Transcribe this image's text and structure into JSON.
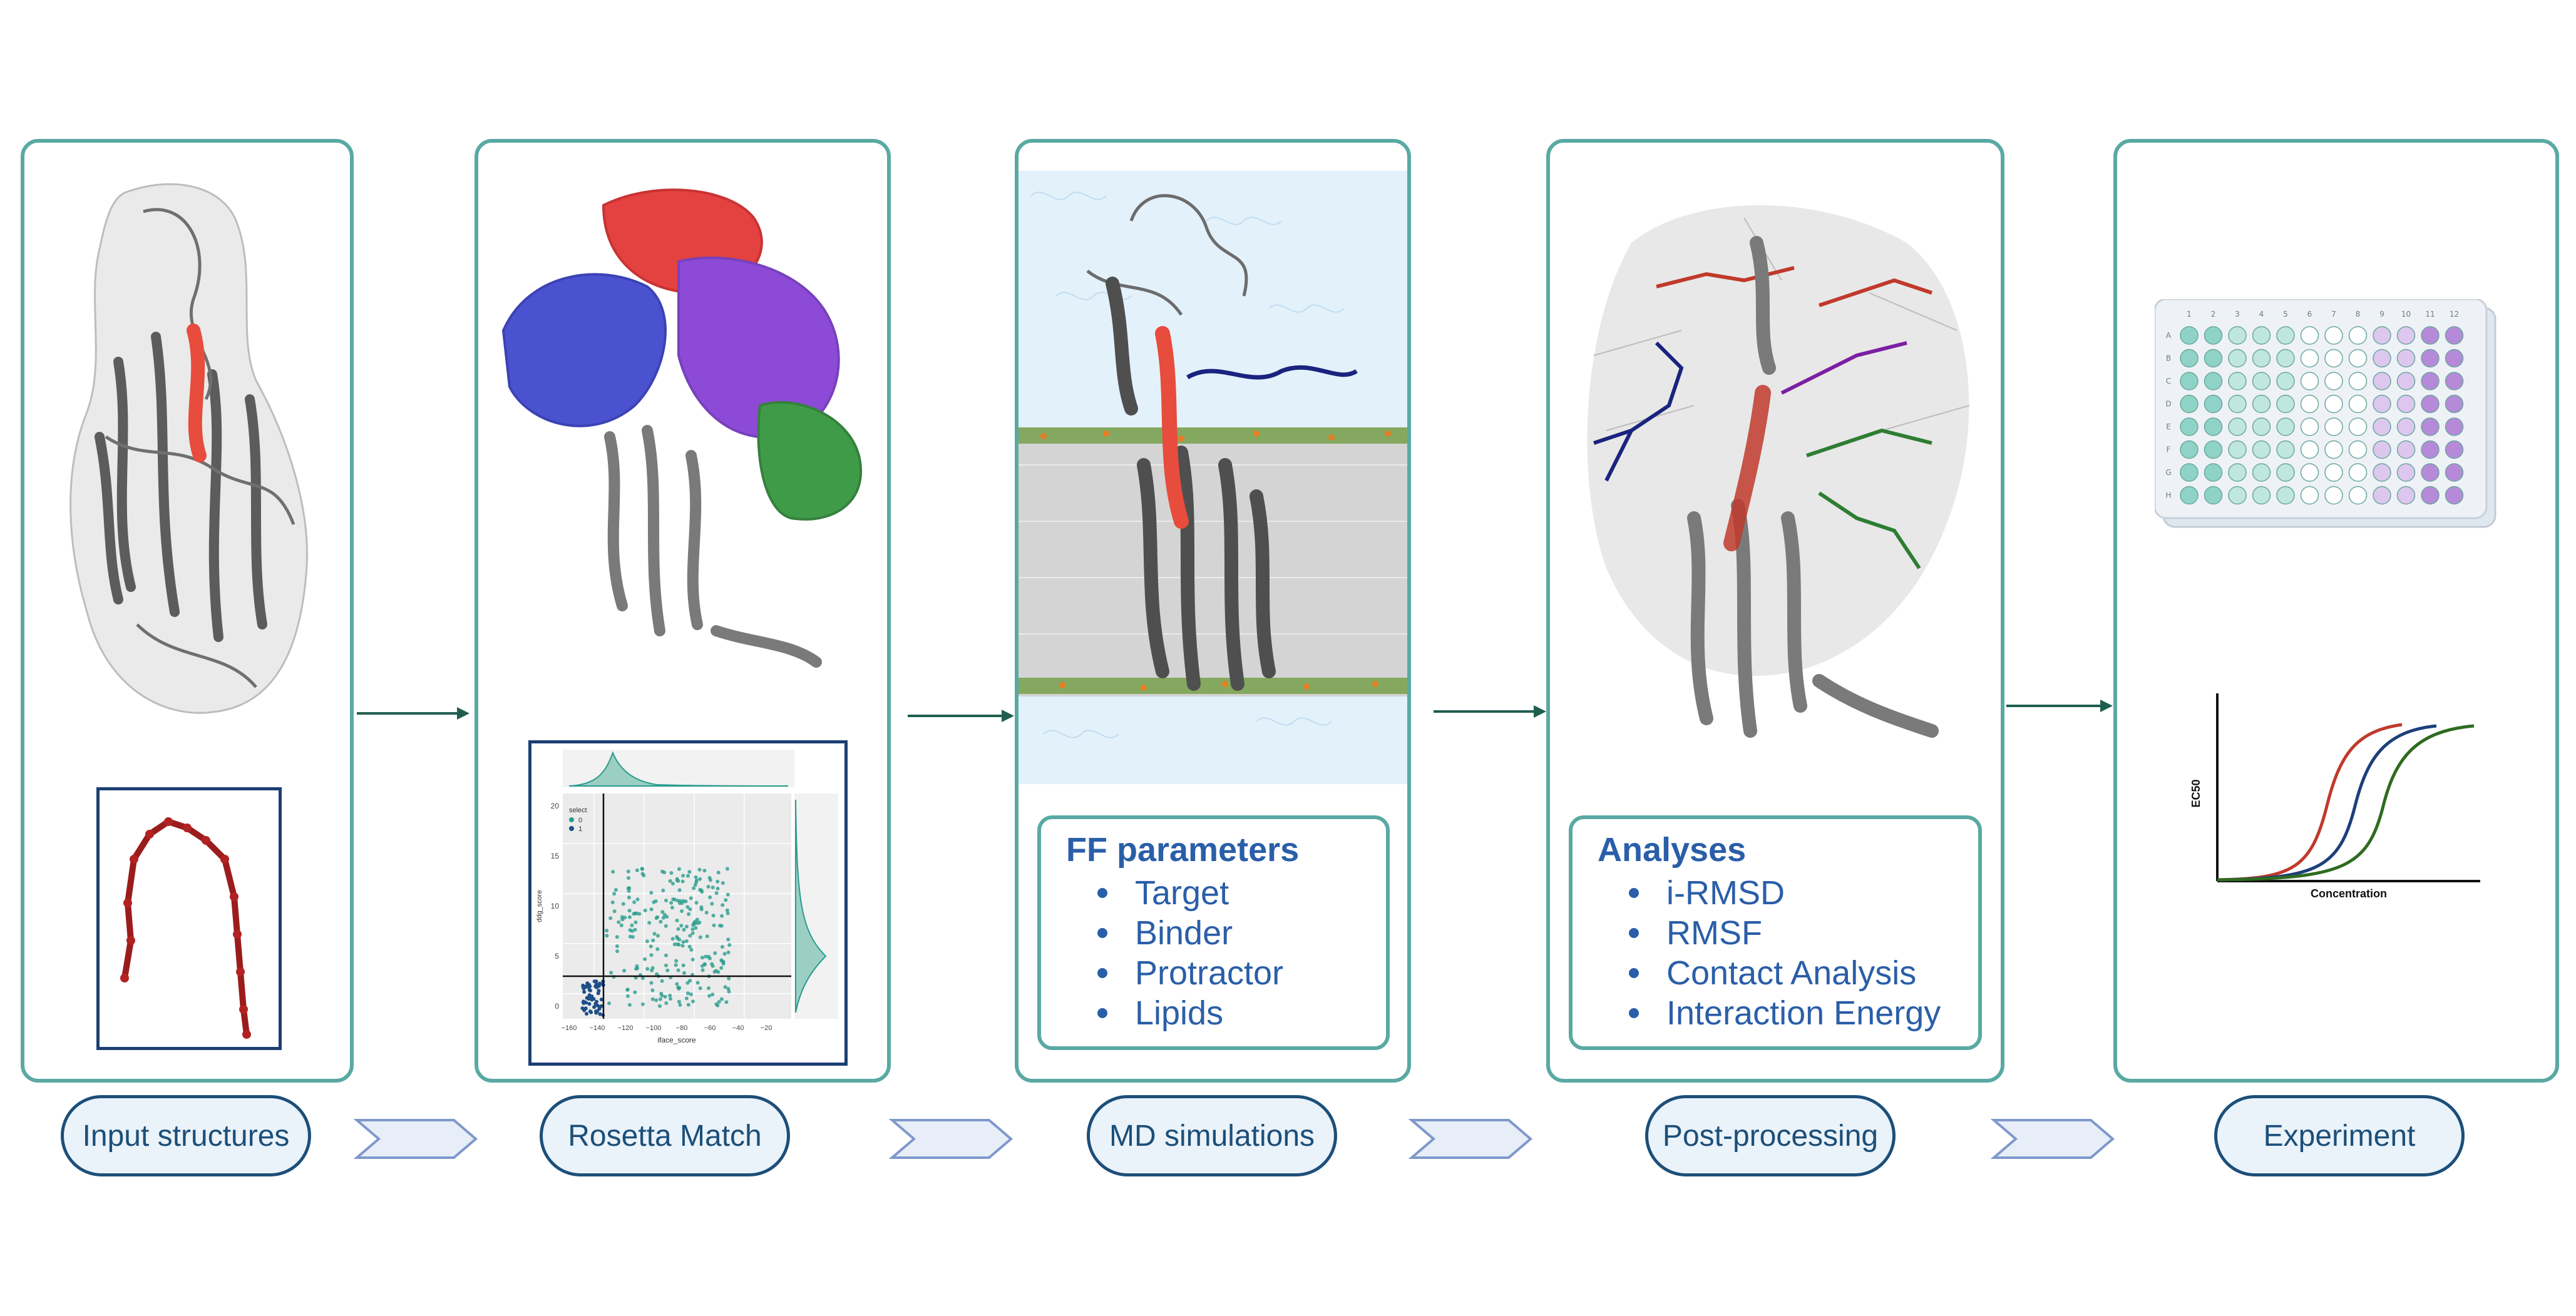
{
  "stages": [
    {
      "id": "input",
      "label": "Input structures"
    },
    {
      "id": "rosetta",
      "label": "Rosetta Match"
    },
    {
      "id": "md",
      "label": "MD simulations"
    },
    {
      "id": "post",
      "label": "Post-processing"
    },
    {
      "id": "experiment",
      "label": "Experiment"
    }
  ],
  "ff_box": {
    "title": "FF parameters",
    "items": [
      "Target",
      "Binder",
      "Protractor",
      "Lipids"
    ]
  },
  "analyses_box": {
    "title": "Analyses",
    "items": [
      "i-RMSD",
      "RMSF",
      "Contact Analysis",
      "Interaction Energy"
    ]
  },
  "scatter": {
    "xlabel": "iface_score",
    "ylabel": "ddg_score",
    "legend_title": "select",
    "legend_items": [
      "0",
      "1"
    ],
    "x_ticks": [
      "−160",
      "−140",
      "−120",
      "−100",
      "−80",
      "−60",
      "−40",
      "−20"
    ],
    "y_ticks": [
      "0",
      "5",
      "10",
      "15",
      "20"
    ],
    "colors": {
      "select_0": "#2a9d8f",
      "select_1": "#1d4e89"
    }
  },
  "plate": {
    "rows": [
      "A",
      "B",
      "C",
      "D",
      "E",
      "F",
      "G",
      "H"
    ],
    "cols": [
      "1",
      "2",
      "3",
      "4",
      "5",
      "6",
      "7",
      "8",
      "9",
      "10",
      "11",
      "12"
    ]
  },
  "ec50_chart": {
    "ylabel": "EC50",
    "xlabel": "Concentration",
    "colors": [
      "#c0392b",
      "#1d3f7a",
      "#2e6b1f"
    ]
  }
}
